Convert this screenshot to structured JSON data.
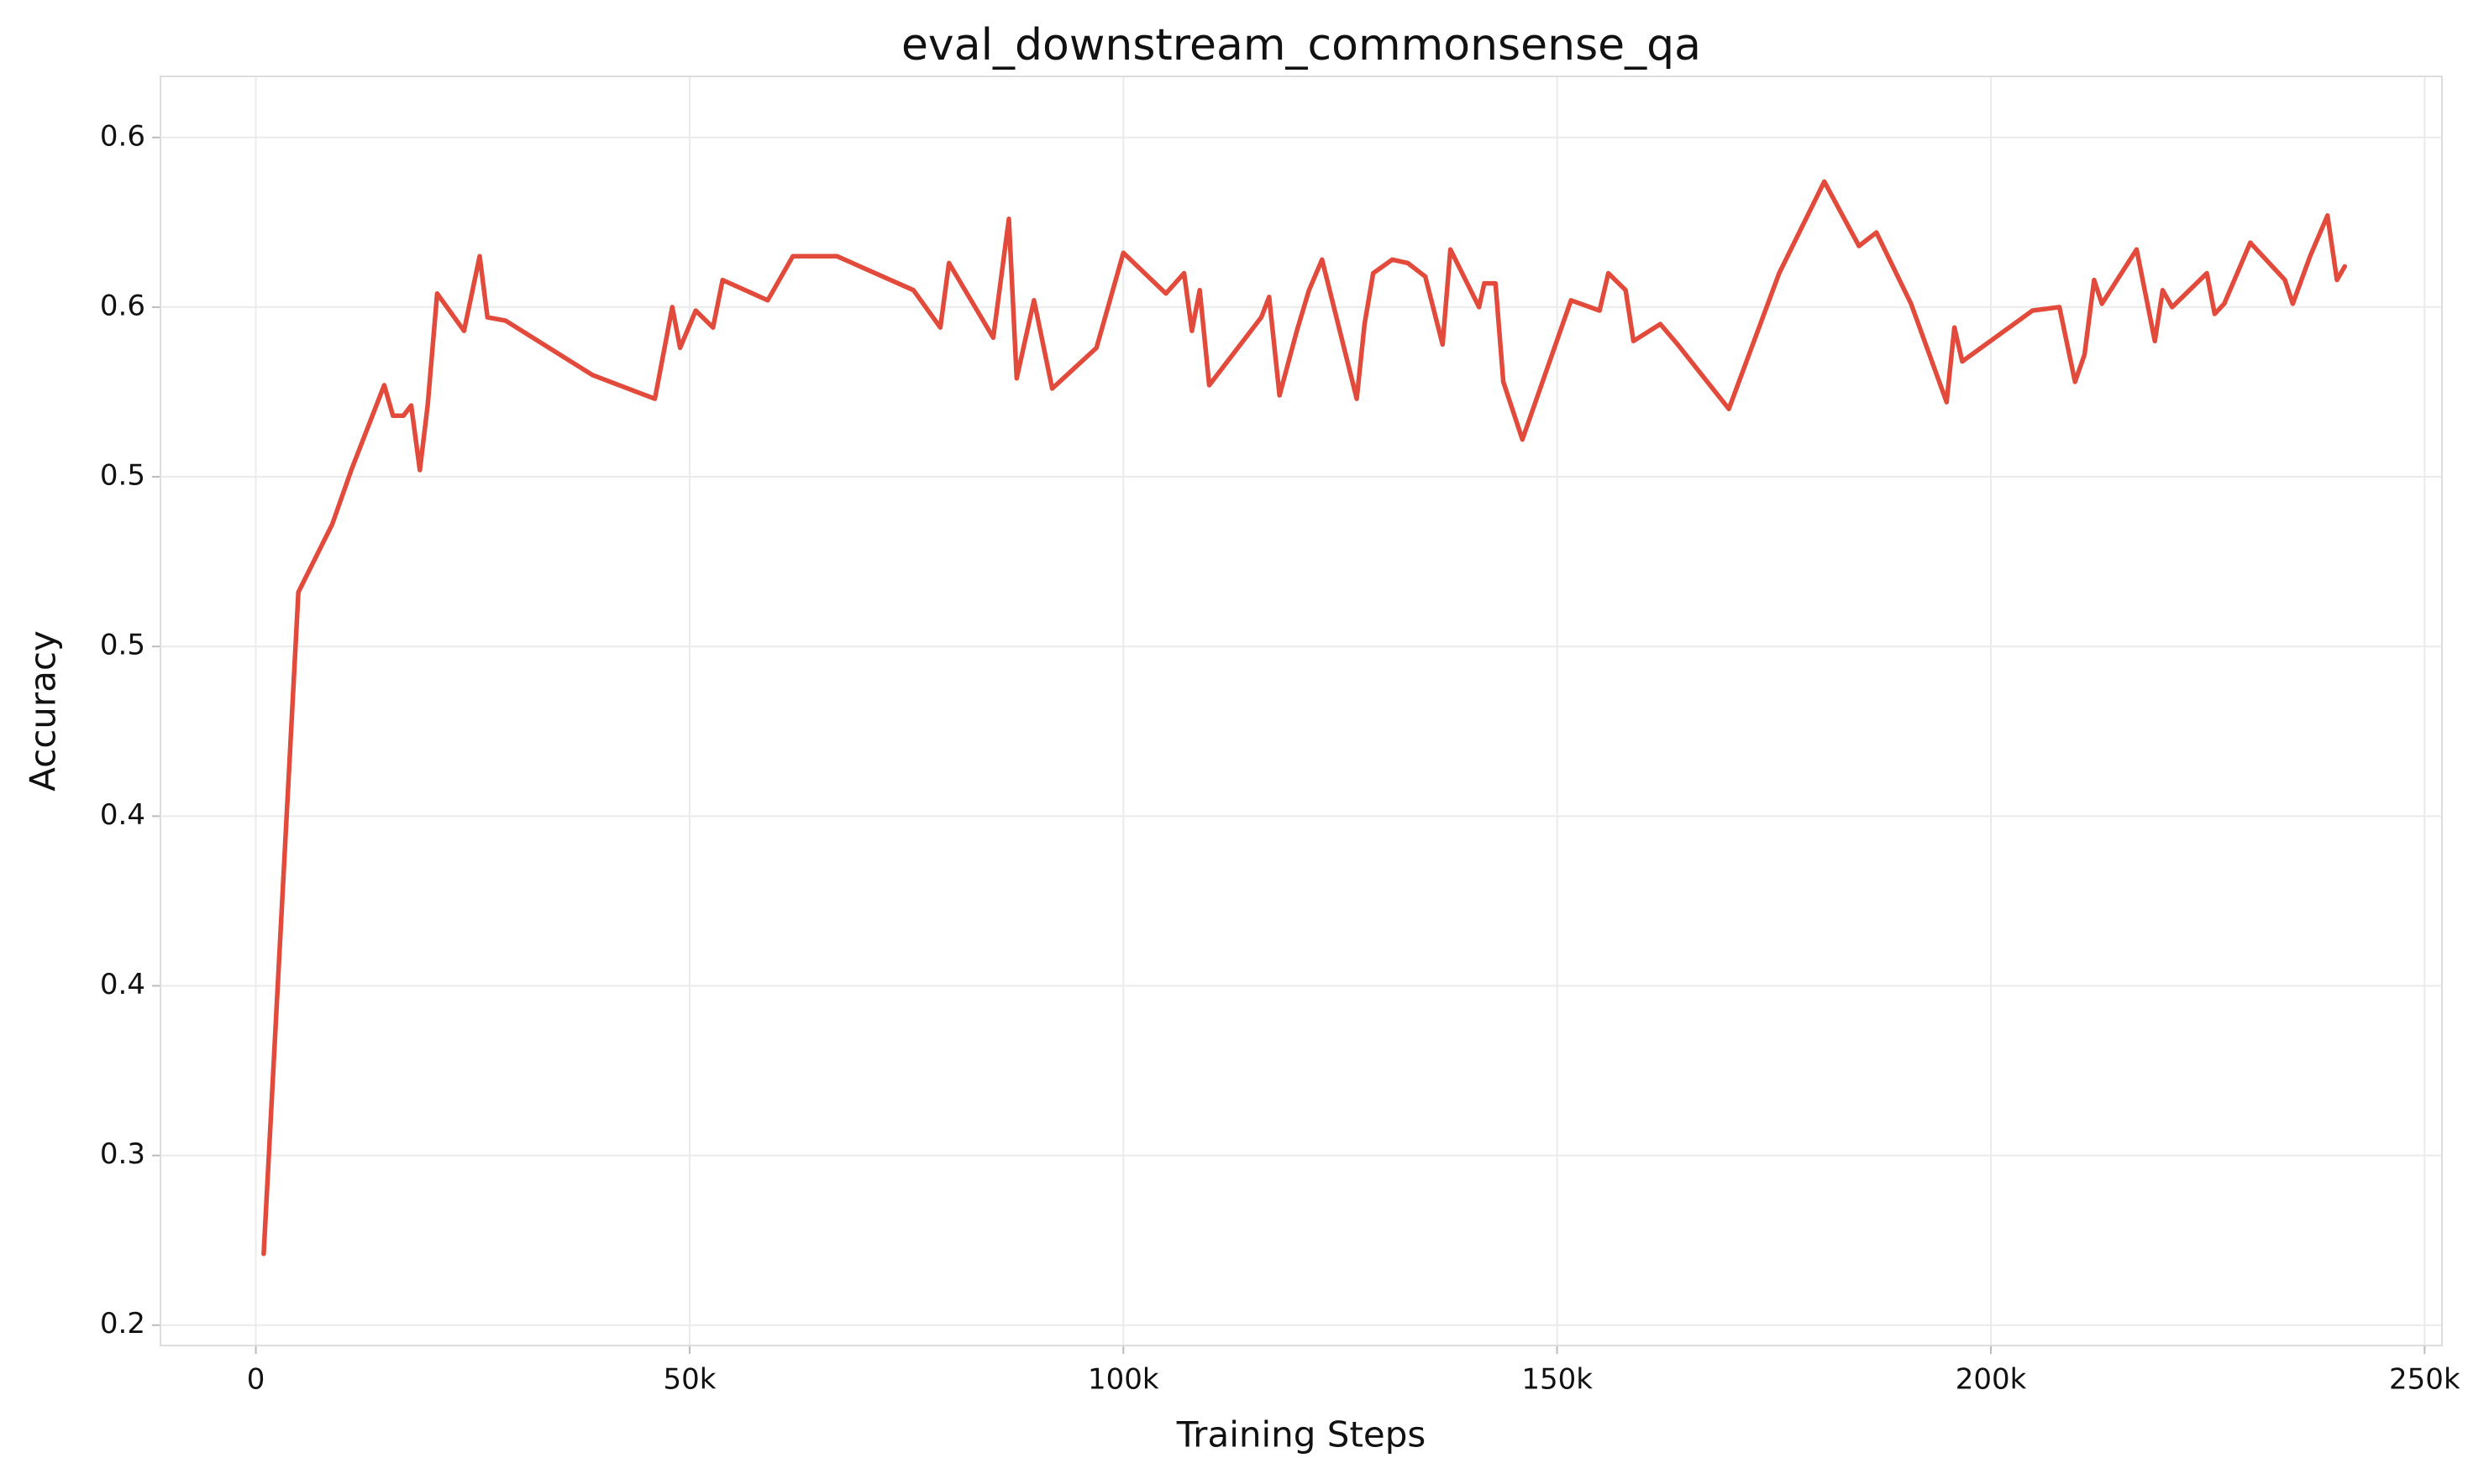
{
  "chart_data": {
    "type": "line",
    "title": "eval_downstream_commonsense_qa",
    "x_label": "Training Steps",
    "y_label": "Accuracy",
    "xlim": [
      -11000,
      252000
    ],
    "xticks": [
      0,
      {
        "value": 50000,
        "label": "50k"
      },
      {
        "value": 100000,
        "label": "100k"
      },
      {
        "value": 150000,
        "label": "150k"
      },
      {
        "value": 200000,
        "label": "200k"
      },
      {
        "value": 250000,
        "label": "250k"
      }
    ],
    "ylim": [
      0.244,
      0.618
    ],
    "yticks": [
      {
        "value": 0.25,
        "label": "0.2"
      },
      {
        "value": 0.3,
        "label": "0.3"
      },
      {
        "value": 0.35,
        "label": "0.4"
      },
      {
        "value": 0.4,
        "label": "0.4"
      },
      {
        "value": 0.45,
        "label": "0.5"
      },
      {
        "value": 0.5,
        "label": "0.5"
      },
      {
        "value": 0.55,
        "label": "0.6"
      },
      {
        "value": 0.6,
        "label": "0.6"
      }
    ],
    "grid": true,
    "series": [
      {
        "color": "#e24a3b",
        "x": [
          900,
          4900,
          8800,
          11000,
          14800,
          15800,
          17000,
          17900,
          18900,
          19800,
          20900,
          24000,
          25800,
          26700,
          28800,
          38800,
          46000,
          48000,
          48900,
          50700,
          52700,
          53800,
          59000,
          61900,
          67000,
          75800,
          78900,
          79900,
          85000,
          86800,
          87700,
          89700,
          91800,
          96900,
          100000,
          104900,
          107000,
          107900,
          108800,
          109900,
          115900,
          116800,
          118000,
          120000,
          121400,
          122900,
          126900,
          127800,
          128800,
          131000,
          132800,
          134800,
          136800,
          137700,
          141000,
          141600,
          142900,
          143800,
          146000,
          151600,
          154900,
          155900,
          157900,
          158800,
          161900,
          163900,
          169800,
          175600,
          180800,
          184800,
          186800,
          190800,
          194900,
          195800,
          196700,
          204800,
          207900,
          209700,
          210800,
          211900,
          212800,
          216800,
          218900,
          219800,
          220900,
          224900,
          225800,
          226900,
          229900,
          233900,
          234800,
          236800,
          238800,
          239900,
          240800
        ],
        "values": [
          0.271,
          0.466,
          0.486,
          0.502,
          0.527,
          0.518,
          0.518,
          0.521,
          0.502,
          0.521,
          0.554,
          0.543,
          0.565,
          0.547,
          0.546,
          0.53,
          0.523,
          0.55,
          0.538,
          0.549,
          0.544,
          0.558,
          0.552,
          0.565,
          0.565,
          0.555,
          0.544,
          0.563,
          0.541,
          0.576,
          0.529,
          0.552,
          0.526,
          0.538,
          0.566,
          0.554,
          0.56,
          0.543,
          0.555,
          0.527,
          0.547,
          0.553,
          0.524,
          0.543,
          0.555,
          0.564,
          0.523,
          0.545,
          0.56,
          0.564,
          0.563,
          0.559,
          0.539,
          0.567,
          0.55,
          0.557,
          0.557,
          0.528,
          0.511,
          0.552,
          0.549,
          0.56,
          0.555,
          0.54,
          0.545,
          0.539,
          0.52,
          0.56,
          0.587,
          0.568,
          0.572,
          0.551,
          0.522,
          0.544,
          0.534,
          0.549,
          0.55,
          0.528,
          0.536,
          0.558,
          0.551,
          0.567,
          0.54,
          0.555,
          0.55,
          0.56,
          0.548,
          0.551,
          0.569,
          0.558,
          0.551,
          0.565,
          0.577,
          0.558,
          0.562
        ]
      }
    ]
  }
}
